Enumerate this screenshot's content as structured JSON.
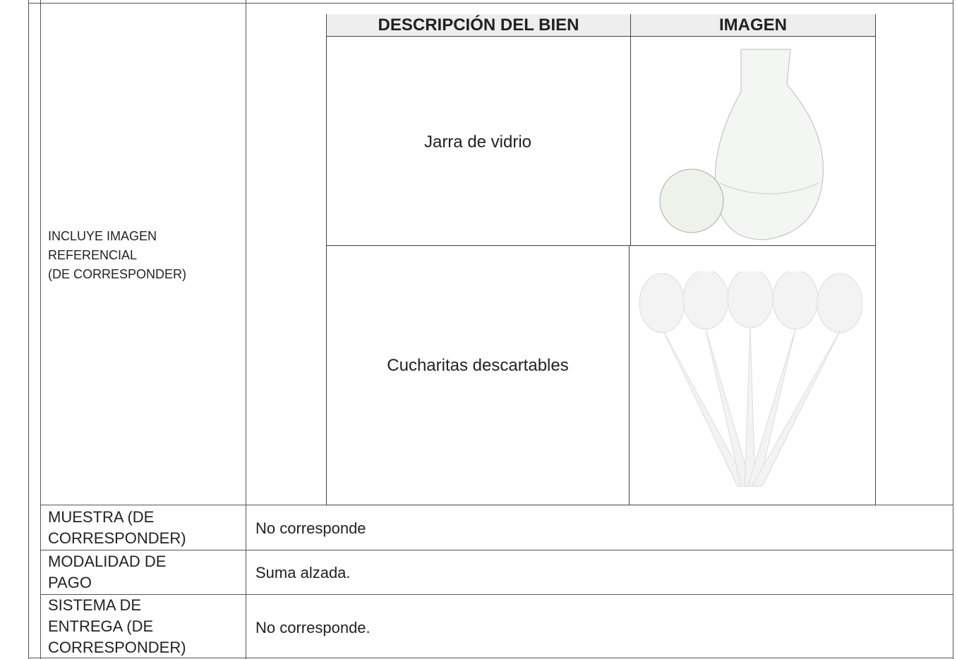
{
  "table": {
    "image_row": {
      "label_lines": [
        "INCLUYE IMAGEN",
        "REFERENCIAL",
        "(DE CORRESPONDER)"
      ],
      "items_table": {
        "headers": [
          "DESCRIPCIÓN DEL BIEN",
          "IMAGEN"
        ],
        "rows": [
          {
            "description": "Jarra de vidrio"
          },
          {
            "description": "Cucharitas descartables"
          }
        ]
      }
    },
    "rows": [
      {
        "label": "MUESTRA (DE CORRESPONDER)",
        "value": "No corresponde"
      },
      {
        "label": "MODALIDAD DE PAGO",
        "value": "Suma alzada."
      },
      {
        "label": "SISTEMA DE ENTREGA (DE CORRESPONDER)",
        "value": "No corresponde."
      }
    ]
  }
}
